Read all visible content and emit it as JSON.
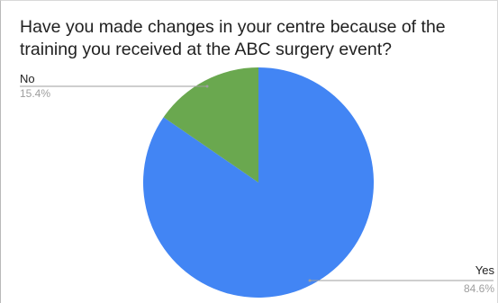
{
  "chart_data": {
    "type": "pie",
    "title": "Have you made changes in your centre because of the training you received at the ABC surgery event?",
    "slices": [
      {
        "label": "Yes",
        "percent_label": "84.6%",
        "value": 84.6,
        "color": "#4285f4"
      },
      {
        "label": "No",
        "percent_label": "15.4%",
        "value": 15.4,
        "color": "#6aa84f"
      }
    ],
    "legend": "none"
  }
}
